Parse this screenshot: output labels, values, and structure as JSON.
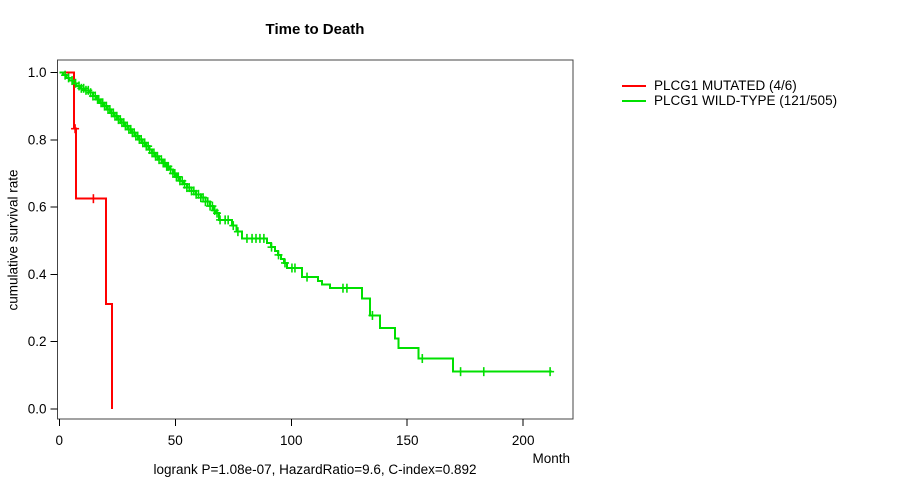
{
  "chart_data": {
    "type": "line",
    "subtype": "kaplan-meier-step",
    "title": "Time to Death",
    "xlabel": "Month",
    "ylabel": "cumulative survival rate",
    "footer": "logrank P=1.08e-07, HazardRatio=9.6, C-index=0.892",
    "xlim": [
      0,
      221
    ],
    "ylim": [
      0.0,
      1.0
    ],
    "x_ticks": [
      0,
      50,
      100,
      150,
      200
    ],
    "y_ticks": [
      0.0,
      0.2,
      0.4,
      0.6,
      0.8,
      1.0
    ],
    "grid": false,
    "legend_position": "right-outside",
    "axis_color": "#444444",
    "text_color": "#000000",
    "series": [
      {
        "name": "PLCG1 MUTATED (4/6)",
        "color": "#ff0000",
        "points": [
          [
            0,
            1.0
          ],
          [
            6.3,
            0.833
          ],
          [
            7.3,
            0.625
          ],
          [
            20.1,
            0.3125
          ],
          [
            22.8,
            0.0
          ]
        ],
        "end": 22.8,
        "censor_times": [
          6.8,
          14.7
        ]
      },
      {
        "name": "PLCG1 WILD-TYPE (121/505)",
        "color": "#00e000",
        "points": [
          [
            0,
            1.0
          ],
          [
            1.5,
            0.992
          ],
          [
            3,
            0.984
          ],
          [
            4.5,
            0.976
          ],
          [
            6,
            0.968
          ],
          [
            7.5,
            0.96
          ],
          [
            9,
            0.953
          ],
          [
            11,
            0.947
          ],
          [
            13,
            0.94
          ],
          [
            14.5,
            0.93
          ],
          [
            16,
            0.92
          ],
          [
            17.5,
            0.91
          ],
          [
            19,
            0.9
          ],
          [
            20.5,
            0.89
          ],
          [
            22,
            0.88
          ],
          [
            23.5,
            0.87
          ],
          [
            25,
            0.86
          ],
          [
            26.5,
            0.851
          ],
          [
            28,
            0.841
          ],
          [
            29.5,
            0.831
          ],
          [
            31,
            0.821
          ],
          [
            32.5,
            0.811
          ],
          [
            34,
            0.801
          ],
          [
            35.5,
            0.791
          ],
          [
            37,
            0.781
          ],
          [
            38.5,
            0.771
          ],
          [
            40,
            0.761
          ],
          [
            41.5,
            0.751
          ],
          [
            43,
            0.741
          ],
          [
            44.5,
            0.731
          ],
          [
            46,
            0.721
          ],
          [
            47.5,
            0.711
          ],
          [
            49,
            0.7
          ],
          [
            50.5,
            0.69
          ],
          [
            52,
            0.678
          ],
          [
            53.5,
            0.668
          ],
          [
            55,
            0.658
          ],
          [
            57,
            0.648
          ],
          [
            59,
            0.638
          ],
          [
            61,
            0.628
          ],
          [
            63,
            0.616
          ],
          [
            65,
            0.603
          ],
          [
            66.5,
            0.59
          ],
          [
            67.6,
            0.582
          ],
          [
            68.8,
            0.562
          ],
          [
            74.5,
            0.545
          ],
          [
            76.5,
            0.527
          ],
          [
            78.7,
            0.507
          ],
          [
            89.5,
            0.493
          ],
          [
            91.2,
            0.481
          ],
          [
            93,
            0.47
          ],
          [
            94.2,
            0.458
          ],
          [
            95.5,
            0.446
          ],
          [
            96.8,
            0.434
          ],
          [
            98.1,
            0.419
          ],
          [
            104.6,
            0.392
          ],
          [
            111.5,
            0.38
          ],
          [
            113.2,
            0.37
          ],
          [
            116.7,
            0.359
          ],
          [
            130.4,
            0.329
          ],
          [
            134,
            0.278
          ],
          [
            138.3,
            0.24
          ],
          [
            144.7,
            0.21
          ],
          [
            146.2,
            0.181
          ],
          [
            154.8,
            0.15
          ],
          [
            169.7,
            0.111
          ]
        ],
        "end": 212.4,
        "censor_times": [
          2.5,
          4,
          5.5,
          7,
          8.5,
          9.5,
          10.5,
          11.5,
          12.5,
          13.5,
          14.5,
          15.5,
          16.5,
          17,
          18,
          18.7,
          19.5,
          20.3,
          21,
          21.8,
          22.5,
          23.3,
          24,
          24.8,
          25.5,
          26.3,
          27,
          27.8,
          28.5,
          29.3,
          30,
          30.8,
          31.5,
          32.3,
          33,
          33.8,
          34.5,
          35.3,
          36,
          36.8,
          37.5,
          38.3,
          39,
          40,
          40.8,
          41.5,
          42.3,
          43,
          44,
          44.8,
          45.5,
          46.3,
          47,
          48,
          49,
          49.8,
          50.5,
          51.3,
          52,
          53,
          54,
          55,
          56,
          57,
          58,
          59,
          60,
          61,
          62,
          63,
          64,
          65,
          66,
          67,
          68,
          69.3,
          71.5,
          72.8,
          75,
          77,
          80.9,
          83.1,
          84.8,
          86.5,
          88.2,
          91.5,
          94.5,
          97.3,
          100.3,
          101.6,
          106.8,
          122.3,
          124,
          135,
          156.5,
          173,
          183,
          211.6
        ]
      }
    ]
  }
}
